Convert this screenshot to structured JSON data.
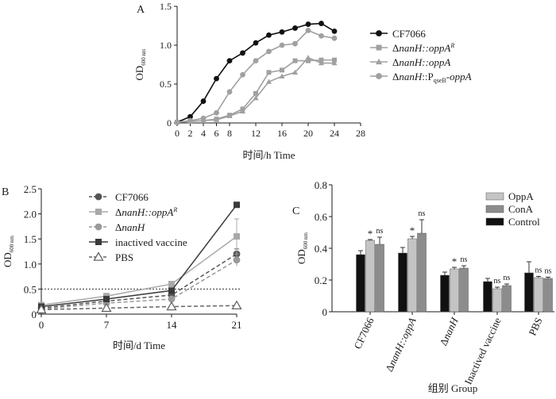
{
  "chart_data": [
    {
      "panel_label": "A",
      "type": "line",
      "xlabel": "时间/h  Time",
      "ylabel": "OD",
      "ylabel_sub": "600 nm",
      "xlim": [
        0,
        28
      ],
      "ylim": [
        0,
        1.5
      ],
      "xticks": [
        0,
        2,
        4,
        6,
        8,
        12,
        16,
        20,
        24,
        28
      ],
      "yticks": [
        "0",
        "0.5",
        "1.0",
        "1.5"
      ],
      "legend_position": "right",
      "grid": false,
      "series": [
        {
          "name": "CF7066",
          "name_parts": [
            {
              "t": "CF7066",
              "i": false
            }
          ],
          "color": "#111111",
          "marker": "circle",
          "dash": false,
          "x": [
            0,
            2,
            4,
            6,
            8,
            10,
            12,
            14,
            16,
            18,
            20,
            22,
            24
          ],
          "y": [
            0.01,
            0.08,
            0.28,
            0.57,
            0.8,
            0.9,
            1.03,
            1.13,
            1.17,
            1.22,
            1.27,
            1.28,
            1.18
          ]
        },
        {
          "name": "ΔnanH::oppA^R",
          "name_parts": [
            {
              "t": "Δ",
              "i": false
            },
            {
              "t": "nanH::oppA",
              "i": true
            },
            {
              "t": "R",
              "i": true,
              "sup": true
            }
          ],
          "color": "#a0a0a0",
          "marker": "square",
          "dash": false,
          "x": [
            0,
            2,
            4,
            6,
            8,
            10,
            12,
            14,
            16,
            18,
            20,
            22,
            24
          ],
          "y": [
            0.01,
            0.02,
            0.03,
            0.05,
            0.1,
            0.18,
            0.38,
            0.65,
            0.68,
            0.8,
            0.8,
            0.81,
            0.81
          ]
        },
        {
          "name": "ΔnanH::oppA",
          "name_parts": [
            {
              "t": "Δ",
              "i": false
            },
            {
              "t": "nanH::oppA",
              "i": true
            }
          ],
          "color": "#a0a0a0",
          "marker": "triangle",
          "dash": false,
          "x": [
            0,
            2,
            4,
            6,
            8,
            10,
            12,
            14,
            16,
            18,
            20,
            22,
            24
          ],
          "y": [
            0.01,
            0.02,
            0.03,
            0.04,
            0.09,
            0.15,
            0.32,
            0.53,
            0.6,
            0.65,
            0.84,
            0.77,
            0.77
          ]
        },
        {
          "name": "ΔnanH::PqseB-oppA",
          "name_parts": [
            {
              "t": "Δ",
              "i": false
            },
            {
              "t": "nanH",
              "i": true
            },
            {
              "t": "::P",
              "i": false
            },
            {
              "t": "qseB",
              "i": false,
              "sub": true
            },
            {
              "t": "-",
              "i": false
            },
            {
              "t": "oppA",
              "i": true
            }
          ],
          "color": "#a0a0a0",
          "marker": "circle",
          "dash": false,
          "x": [
            0,
            2,
            4,
            6,
            8,
            10,
            12,
            14,
            16,
            18,
            20,
            22,
            24
          ],
          "y": [
            0.01,
            0.03,
            0.06,
            0.13,
            0.4,
            0.62,
            0.8,
            0.92,
            1.0,
            1.02,
            1.19,
            1.12,
            1.09
          ]
        }
      ]
    },
    {
      "panel_label": "B",
      "type": "line",
      "xlabel": "时间/d  Time",
      "ylabel": "OD",
      "ylabel_sub": "600 nm",
      "xlim": [
        0,
        21
      ],
      "ylim": [
        0,
        2.5
      ],
      "xticks": [
        0,
        7,
        14,
        21
      ],
      "yticks": [
        "0",
        "0.5",
        "1.0",
        "1.5",
        "2.0",
        "2.5"
      ],
      "reference_line": 0.5,
      "legend_position": "top-left",
      "grid": false,
      "series": [
        {
          "name": "CF7066",
          "name_parts": [
            {
              "t": "CF7066",
              "i": false
            }
          ],
          "color": "#555555",
          "marker": "circle",
          "dash": true,
          "x": [
            0,
            7,
            14,
            21
          ],
          "y": [
            0.12,
            0.26,
            0.38,
            1.2
          ],
          "err": [
            0,
            0.04,
            0.04,
            0.1
          ]
        },
        {
          "name": "ΔnanH::oppA^R",
          "name_parts": [
            {
              "t": "Δ",
              "i": false
            },
            {
              "t": "nanH::oppA",
              "i": true
            },
            {
              "t": "R",
              "i": true,
              "sup": true
            }
          ],
          "color": "#a8a8a8",
          "marker": "square",
          "dash": false,
          "x": [
            0,
            7,
            14,
            21
          ],
          "y": [
            0.18,
            0.36,
            0.6,
            1.55
          ],
          "err": [
            0,
            0.03,
            0.04,
            0.35
          ]
        },
        {
          "name": "ΔnanH",
          "name_parts": [
            {
              "t": "Δ",
              "i": false
            },
            {
              "t": "nanH",
              "i": true
            }
          ],
          "color": "#9a9a9a",
          "marker": "circle",
          "dash": true,
          "x": [
            0,
            7,
            14,
            21
          ],
          "y": [
            0.1,
            0.22,
            0.3,
            1.08
          ],
          "err": [
            0,
            0.03,
            0.03,
            0.12
          ]
        },
        {
          "name": "inactived vaccine",
          "name_parts": [
            {
              "t": "inactived vaccine",
              "i": false
            }
          ],
          "color": "#3a3a3a",
          "marker": "square",
          "dash": false,
          "x": [
            0,
            7,
            14,
            21
          ],
          "y": [
            0.15,
            0.3,
            0.47,
            2.18
          ],
          "err": [
            0,
            0.03,
            0.03,
            0.05
          ]
        },
        {
          "name": "PBS",
          "name_parts": [
            {
              "t": "PBS",
              "i": false
            }
          ],
          "color": "#666666",
          "marker": "triangle-open",
          "dash": true,
          "x": [
            0,
            7,
            14,
            21
          ],
          "y": [
            0.09,
            0.12,
            0.15,
            0.17
          ],
          "err": [
            0,
            0,
            0,
            0
          ]
        }
      ]
    },
    {
      "panel_label": "C",
      "type": "bar",
      "xlabel": "组别  Group",
      "ylabel": "OD",
      "ylabel_sub": "600 nm",
      "ylim": [
        0,
        0.8
      ],
      "yticks": [
        "0",
        "0.2",
        "0.4",
        "0.6",
        "0.8"
      ],
      "legend_position": "top-right",
      "grid": false,
      "categories": [
        {
          "label": "CF7066",
          "italic": false
        },
        {
          "label": "ΔnanH::oppA",
          "parts": [
            {
              "t": "Δ",
              "i": false
            },
            {
              "t": "nanH::oppA",
              "i": true
            }
          ]
        },
        {
          "label": "ΔnanH",
          "parts": [
            {
              "t": "Δ",
              "i": false
            },
            {
              "t": "nanH",
              "i": true
            }
          ]
        },
        {
          "label": "Inactived vaccine",
          "italic": false
        },
        {
          "label": "PBS",
          "italic": false
        }
      ],
      "series": [
        {
          "name": "Control",
          "color": "#111111",
          "values": [
            0.36,
            0.37,
            0.23,
            0.19,
            0.245
          ],
          "err": [
            0.025,
            0.035,
            0.02,
            0.02,
            0.07
          ]
        },
        {
          "name": "OppA",
          "color": "#c4c4c4",
          "values": [
            0.45,
            0.46,
            0.27,
            0.145,
            0.215
          ],
          "err": [
            0.005,
            0.015,
            0.01,
            0.01,
            0.008
          ]
        },
        {
          "name": "ConA",
          "color": "#8c8c8c",
          "values": [
            0.425,
            0.495,
            0.275,
            0.165,
            0.21
          ],
          "err": [
            0.045,
            0.085,
            0.015,
            0.01,
            0.008
          ]
        }
      ],
      "legend_order": [
        "OppA",
        "ConA",
        "Control"
      ],
      "annotations": [
        [
          "*",
          "ns"
        ],
        [
          "*",
          "ns"
        ],
        [
          "*",
          "ns"
        ],
        [
          "ns",
          "ns"
        ],
        [
          "ns",
          "ns"
        ]
      ]
    }
  ]
}
